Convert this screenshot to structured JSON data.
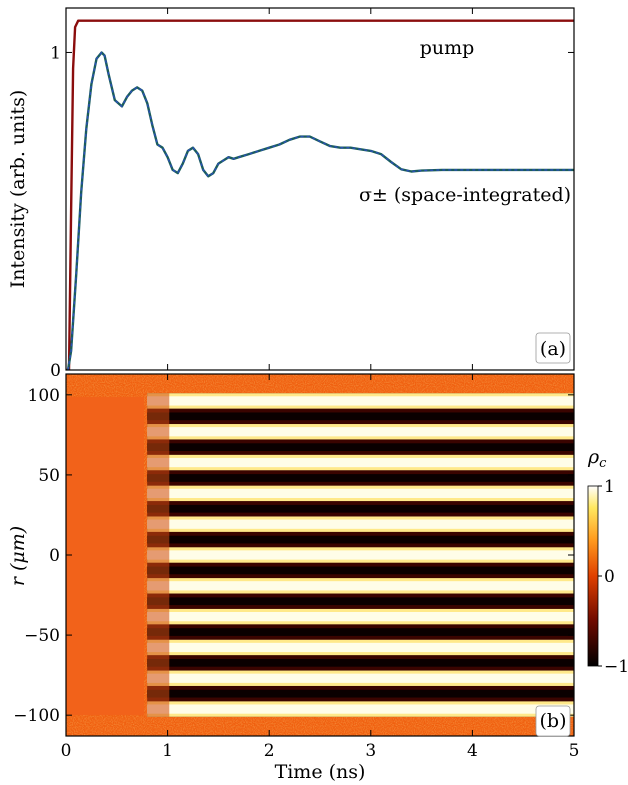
{
  "chart_data": [
    {
      "panel": "a",
      "type": "line",
      "panel_label": "(a)",
      "xlim": [
        0,
        5
      ],
      "ylim": [
        0,
        1.14
      ],
      "yticks": [
        0,
        1
      ],
      "ytick_labels": [
        "0",
        "1"
      ],
      "ylabel": "Intensity (arb. units)",
      "grid": false,
      "series": [
        {
          "name": "pump",
          "color": "#8b0d0d",
          "x": [
            0,
            0.03,
            0.05,
            0.07,
            0.09,
            0.12,
            5.0
          ],
          "y": [
            0,
            0,
            0.5,
            0.95,
            1.08,
            1.1,
            1.1
          ]
        },
        {
          "name": "σ± (space-integrated)",
          "color": "#1a5d5c",
          "dash_color": "#2b4fb8",
          "x": [
            0.02,
            0.05,
            0.1,
            0.15,
            0.2,
            0.25,
            0.3,
            0.35,
            0.38,
            0.42,
            0.48,
            0.55,
            0.6,
            0.65,
            0.7,
            0.75,
            0.8,
            0.85,
            0.9,
            0.95,
            1.0,
            1.05,
            1.1,
            1.15,
            1.2,
            1.25,
            1.3,
            1.35,
            1.4,
            1.45,
            1.5,
            1.55,
            1.6,
            1.65,
            1.7,
            1.8,
            1.9,
            2.0,
            2.1,
            2.2,
            2.3,
            2.4,
            2.5,
            2.6,
            2.7,
            2.8,
            2.9,
            3.0,
            3.1,
            3.2,
            3.3,
            3.4,
            3.5,
            3.7,
            4.0,
            4.5,
            5.0
          ],
          "y": [
            0.0,
            0.06,
            0.3,
            0.56,
            0.76,
            0.9,
            0.98,
            1.0,
            0.99,
            0.93,
            0.85,
            0.83,
            0.86,
            0.88,
            0.89,
            0.88,
            0.84,
            0.77,
            0.71,
            0.7,
            0.67,
            0.63,
            0.62,
            0.65,
            0.69,
            0.7,
            0.68,
            0.63,
            0.61,
            0.62,
            0.65,
            0.66,
            0.67,
            0.665,
            0.67,
            0.68,
            0.69,
            0.7,
            0.71,
            0.725,
            0.735,
            0.735,
            0.72,
            0.705,
            0.7,
            0.7,
            0.695,
            0.69,
            0.68,
            0.655,
            0.632,
            0.625,
            0.628,
            0.63,
            0.63,
            0.63,
            0.63
          ]
        }
      ],
      "annotations": [
        {
          "text": "pump",
          "color": "#8b0d0d"
        },
        {
          "text": "σ± (space-integrated)",
          "color": "#1a5d5c"
        }
      ]
    },
    {
      "panel": "b",
      "type": "heatmap",
      "panel_label": "(b)",
      "xlim": [
        0,
        5
      ],
      "ylim": [
        -113,
        113
      ],
      "xticks": [
        0,
        1,
        2,
        3,
        4,
        5
      ],
      "xtick_labels": [
        "0",
        "1",
        "2",
        "3",
        "4",
        "5"
      ],
      "yticks": [
        100,
        50,
        0,
        -50,
        -100
      ],
      "ytick_labels": [
        "100",
        "50",
        "0",
        "−50",
        "−100"
      ],
      "xlabel": "Time (ns)",
      "ylabel": "r (μm)",
      "colorbar": {
        "label": "ρ",
        "label_sub": "c",
        "range": [
          -1,
          1
        ],
        "ticks": [
          1,
          0,
          -1
        ],
        "tick_labels": [
          "1",
          "0",
          "−1"
        ],
        "colormap": "afmhot: black → red → orange → yellow → white"
      },
      "description_values": {
        "active_region_r": [
          -101,
          101
        ],
        "stripe_count": 21,
        "stripe_period_um": 20,
        "pattern_onset_ns": 0.8,
        "background_value": -0.05
      }
    }
  ]
}
